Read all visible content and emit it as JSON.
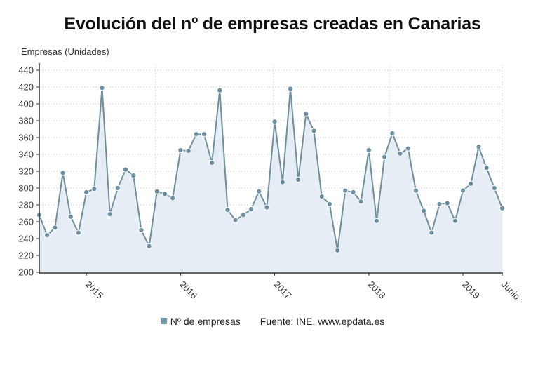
{
  "title": "Evolución del nº de empresas creadas en Canarias",
  "legend": {
    "series_label": "Nº de empresas",
    "source": "Fuente: INE, www.epdata.es"
  },
  "colors": {
    "line": "#6f8f9a",
    "marker": "#6a8fa3",
    "area": "#e6edf5",
    "grid": "#d8d8d8",
    "axis": "#333333"
  },
  "chart_data": {
    "type": "line",
    "title": "Evolución del nº de empresas creadas en Canarias",
    "xlabel": "",
    "ylabel": "Empresas (Unidades)",
    "ylim": [
      200,
      440
    ],
    "yticks": [
      200,
      220,
      240,
      260,
      280,
      300,
      320,
      340,
      360,
      380,
      400,
      420,
      440
    ],
    "xtick_labels": [
      "2015",
      "2016",
      "2017",
      "2018",
      "2019",
      "Junio"
    ],
    "xtick_index": [
      6,
      18,
      30,
      42,
      54,
      59
    ],
    "grid": true,
    "legend_position": "bottom",
    "x": [
      "2014-07",
      "2014-08",
      "2014-09",
      "2014-10",
      "2014-11",
      "2014-12",
      "2015-01",
      "2015-02",
      "2015-03",
      "2015-04",
      "2015-05",
      "2015-06",
      "2015-07",
      "2015-08",
      "2015-09",
      "2015-10",
      "2015-11",
      "2015-12",
      "2016-01",
      "2016-02",
      "2016-03",
      "2016-04",
      "2016-05",
      "2016-06",
      "2016-07",
      "2016-08",
      "2016-09",
      "2016-10",
      "2016-11",
      "2016-12",
      "2017-01",
      "2017-02",
      "2017-03",
      "2017-04",
      "2017-05",
      "2017-06",
      "2017-07",
      "2017-08",
      "2017-09",
      "2017-10",
      "2017-11",
      "2017-12",
      "2018-01",
      "2018-02",
      "2018-03",
      "2018-04",
      "2018-05",
      "2018-06",
      "2018-07",
      "2018-08",
      "2018-09",
      "2018-10",
      "2018-11",
      "2018-12",
      "2019-01",
      "2019-02",
      "2019-03",
      "2019-04",
      "2019-05",
      "2019-06"
    ],
    "series": [
      {
        "name": "Nº de empresas",
        "values": [
          268,
          244,
          253,
          318,
          266,
          247,
          295,
          299,
          419,
          269,
          300,
          322,
          315,
          250,
          231,
          296,
          293,
          288,
          345,
          344,
          364,
          364,
          330,
          416,
          274,
          262,
          268,
          275,
          296,
          277,
          379,
          307,
          418,
          310,
          388,
          368,
          290,
          281,
          226,
          297,
          295,
          284,
          345,
          261,
          337,
          365,
          341,
          347,
          297,
          273,
          247,
          281,
          282,
          261,
          297,
          305,
          349,
          324,
          300,
          276
        ]
      }
    ]
  }
}
